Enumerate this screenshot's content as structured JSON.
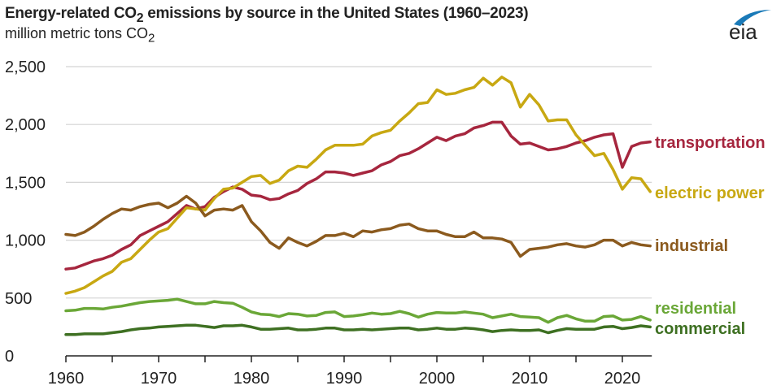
{
  "title_parts": {
    "pre": "Energy-related CO",
    "sub": "2",
    "post": " emissions by source in the United States (1960–2023)"
  },
  "subtitle_parts": {
    "pre": "million metric tons CO",
    "sub": "2"
  },
  "logo": {
    "text": "eia",
    "color": "#1a7ab8"
  },
  "chart_data": {
    "type": "line",
    "title": "Energy-related CO2 emissions by source in the United States (1960–2023)",
    "ylabel": "million metric tons CO2",
    "xlim": [
      1960,
      2023
    ],
    "ylim": [
      0,
      2500
    ],
    "xticks": [
      1960,
      1970,
      1980,
      1990,
      2000,
      2010,
      2020
    ],
    "xtick_labels": [
      "1960",
      "1970",
      "1980",
      "1990",
      "2000",
      "2010",
      "2020"
    ],
    "yticks": [
      0,
      500,
      1000,
      1500,
      2000,
      2500
    ],
    "ytick_labels": [
      "0",
      "500",
      "1,000",
      "1,500",
      "2,000",
      "2,500"
    ],
    "grid": "horizontal",
    "legend": "direct labels at right",
    "x_start": 1960,
    "series": [
      {
        "name": "transportation",
        "color": "#a6263e",
        "values": [
          750,
          760,
          790,
          820,
          840,
          870,
          920,
          960,
          1040,
          1080,
          1120,
          1160,
          1230,
          1300,
          1270,
          1290,
          1370,
          1420,
          1460,
          1440,
          1390,
          1380,
          1350,
          1360,
          1400,
          1430,
          1490,
          1530,
          1590,
          1590,
          1580,
          1560,
          1580,
          1600,
          1650,
          1680,
          1730,
          1750,
          1790,
          1840,
          1890,
          1860,
          1900,
          1920,
          1970,
          1990,
          2020,
          2020,
          1900,
          1830,
          1840,
          1810,
          1780,
          1790,
          1810,
          1840,
          1860,
          1890,
          1910,
          1920,
          1630,
          1810,
          1840,
          1850
        ]
      },
      {
        "name": "electric power",
        "color": "#c8a812",
        "values": [
          540,
          560,
          590,
          640,
          690,
          730,
          810,
          840,
          920,
          1000,
          1070,
          1100,
          1190,
          1280,
          1270,
          1260,
          1360,
          1440,
          1450,
          1500,
          1550,
          1560,
          1490,
          1520,
          1600,
          1640,
          1630,
          1700,
          1780,
          1820,
          1820,
          1820,
          1830,
          1900,
          1930,
          1950,
          2030,
          2100,
          2180,
          2190,
          2300,
          2260,
          2270,
          2300,
          2320,
          2400,
          2340,
          2410,
          2360,
          2150,
          2260,
          2170,
          2030,
          2040,
          2040,
          1910,
          1820,
          1730,
          1750,
          1610,
          1440,
          1540,
          1530,
          1420
        ]
      },
      {
        "name": "industrial",
        "color": "#8b5a1e",
        "values": [
          1050,
          1040,
          1070,
          1120,
          1180,
          1230,
          1270,
          1260,
          1290,
          1310,
          1320,
          1280,
          1320,
          1380,
          1320,
          1210,
          1260,
          1270,
          1260,
          1300,
          1160,
          1080,
          980,
          930,
          1020,
          980,
          950,
          990,
          1040,
          1040,
          1060,
          1030,
          1080,
          1070,
          1090,
          1100,
          1130,
          1140,
          1100,
          1080,
          1080,
          1050,
          1030,
          1030,
          1070,
          1020,
          1020,
          1010,
          980,
          860,
          920,
          930,
          940,
          960,
          970,
          950,
          940,
          960,
          1000,
          1000,
          950,
          980,
          960,
          950
        ]
      },
      {
        "name": "residential",
        "color": "#6aa737",
        "values": [
          390,
          395,
          410,
          410,
          405,
          420,
          430,
          445,
          460,
          470,
          475,
          480,
          490,
          470,
          450,
          450,
          470,
          460,
          455,
          420,
          380,
          360,
          355,
          340,
          365,
          360,
          345,
          350,
          375,
          380,
          340,
          345,
          355,
          370,
          360,
          365,
          385,
          365,
          335,
          360,
          375,
          370,
          370,
          380,
          370,
          360,
          330,
          345,
          360,
          340,
          335,
          330,
          290,
          330,
          350,
          320,
          300,
          300,
          340,
          345,
          310,
          315,
          340,
          310
        ]
      },
      {
        "name": "commercial",
        "color": "#3e7022",
        "values": [
          185,
          185,
          190,
          190,
          190,
          200,
          210,
          225,
          235,
          240,
          250,
          255,
          260,
          265,
          265,
          255,
          245,
          260,
          260,
          265,
          250,
          230,
          230,
          235,
          240,
          225,
          225,
          230,
          240,
          240,
          225,
          225,
          230,
          225,
          230,
          235,
          240,
          240,
          225,
          230,
          240,
          230,
          230,
          240,
          235,
          225,
          210,
          220,
          225,
          220,
          220,
          225,
          200,
          220,
          235,
          230,
          230,
          230,
          250,
          255,
          235,
          245,
          260,
          250
        ]
      }
    ]
  }
}
